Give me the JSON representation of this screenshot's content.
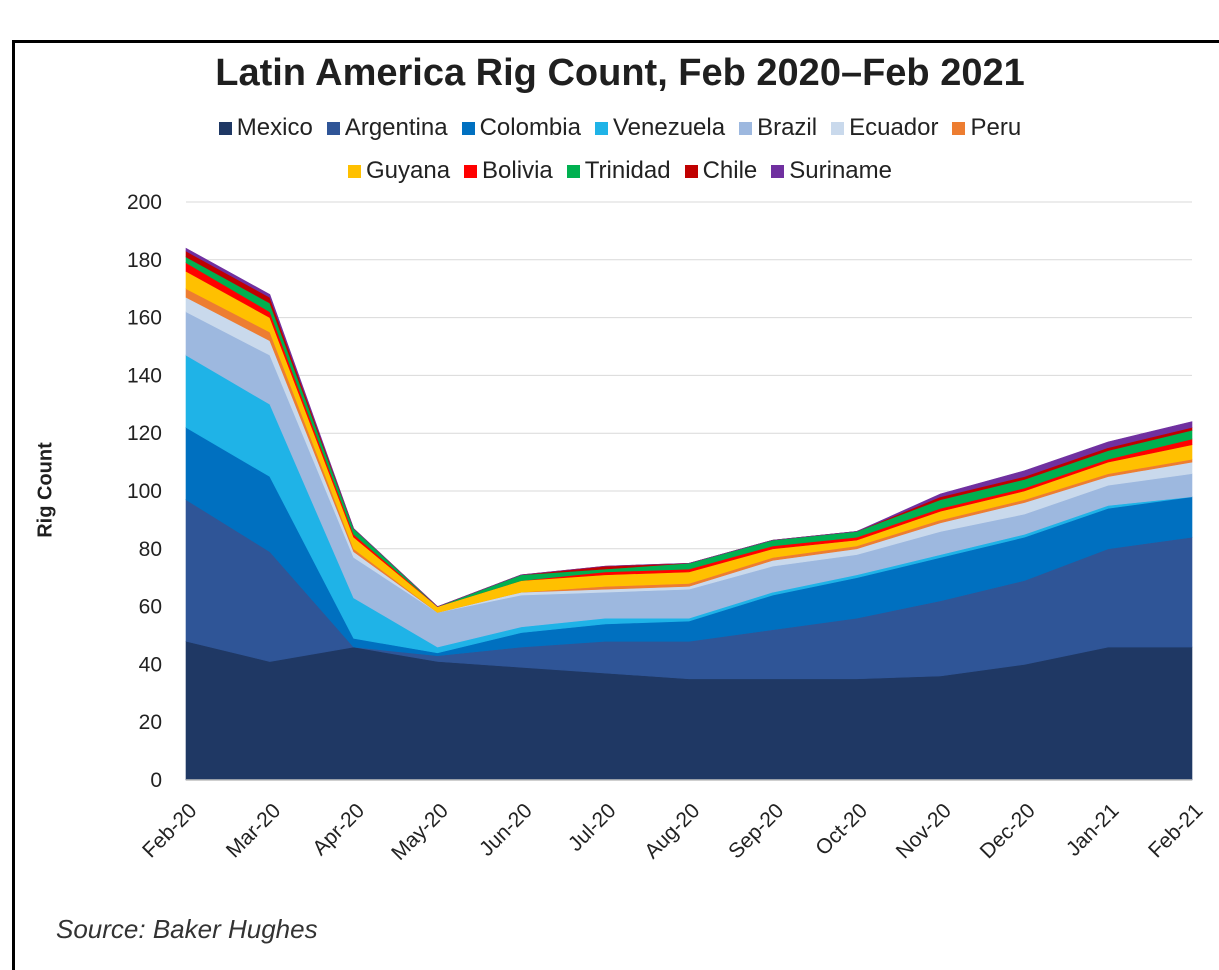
{
  "title": "Latin America Rig Count, Feb 2020–Feb 2021",
  "source": "Source: Baker Hughes",
  "chart_data": {
    "type": "area",
    "stacked": true,
    "title": "Latin America Rig Count, Feb 2020–Feb 2021",
    "xlabel": "",
    "ylabel": "Rig Count",
    "ylim": [
      0,
      200
    ],
    "yticks": [
      0,
      20,
      40,
      60,
      80,
      100,
      120,
      140,
      160,
      180,
      200
    ],
    "grid": true,
    "legend": "top",
    "categories": [
      "Feb-20",
      "Mar-20",
      "Apr-20",
      "May-20",
      "Jun-20",
      "Jul-20",
      "Aug-20",
      "Sep-20",
      "Oct-20",
      "Nov-20",
      "Dec-20",
      "Jan-21",
      "Feb-21"
    ],
    "series": [
      {
        "name": "Mexico",
        "color": "#1f3864",
        "values": [
          48,
          41,
          46,
          41,
          39,
          37,
          35,
          35,
          35,
          36,
          40,
          46,
          46
        ]
      },
      {
        "name": "Argentina",
        "color": "#2f5597",
        "values": [
          49,
          38,
          0,
          2,
          7,
          11,
          13,
          17,
          21,
          26,
          29,
          34,
          38
        ]
      },
      {
        "name": "Colombia",
        "color": "#0070c0",
        "values": [
          25,
          26,
          3,
          1,
          5,
          6,
          7,
          12,
          14,
          15,
          15,
          14,
          14
        ]
      },
      {
        "name": "Venezuela",
        "color": "#1fb3e7",
        "values": [
          25,
          25,
          14,
          2,
          2,
          2,
          1,
          1,
          1,
          1,
          1,
          1,
          0
        ]
      },
      {
        "name": "Brazil",
        "color": "#9db8df",
        "values": [
          15,
          17,
          14,
          12,
          11,
          9,
          10,
          9,
          7,
          8,
          7,
          7,
          8
        ]
      },
      {
        "name": "Ecuador",
        "color": "#c9d9ec",
        "values": [
          5,
          5,
          2,
          0,
          1,
          1,
          1,
          2,
          2,
          3,
          4,
          3,
          4
        ]
      },
      {
        "name": "Peru",
        "color": "#ed7d31",
        "values": [
          3,
          3,
          1,
          0,
          0,
          1,
          1,
          1,
          1,
          1,
          1,
          1,
          1
        ]
      },
      {
        "name": "Guyana",
        "color": "#ffc000",
        "values": [
          6,
          5,
          4,
          2,
          4,
          4,
          4,
          3,
          2,
          3,
          3,
          4,
          5
        ]
      },
      {
        "name": "Bolivia",
        "color": "#ff0000",
        "values": [
          3,
          2,
          1,
          0,
          0,
          1,
          1,
          1,
          1,
          1,
          1,
          1,
          2
        ]
      },
      {
        "name": "Trinidad",
        "color": "#00b050",
        "values": [
          2,
          3,
          2,
          0,
          2,
          1,
          2,
          2,
          2,
          3,
          3,
          3,
          3
        ]
      },
      {
        "name": "Chile",
        "color": "#c00000",
        "values": [
          2,
          2,
          0,
          0,
          0,
          1,
          0,
          0,
          0,
          1,
          1,
          1,
          1
        ]
      },
      {
        "name": "Suriname",
        "color": "#7030a0",
        "values": [
          1,
          1,
          0,
          0,
          0,
          0,
          0,
          0,
          0,
          1,
          2,
          2,
          2
        ]
      }
    ]
  }
}
